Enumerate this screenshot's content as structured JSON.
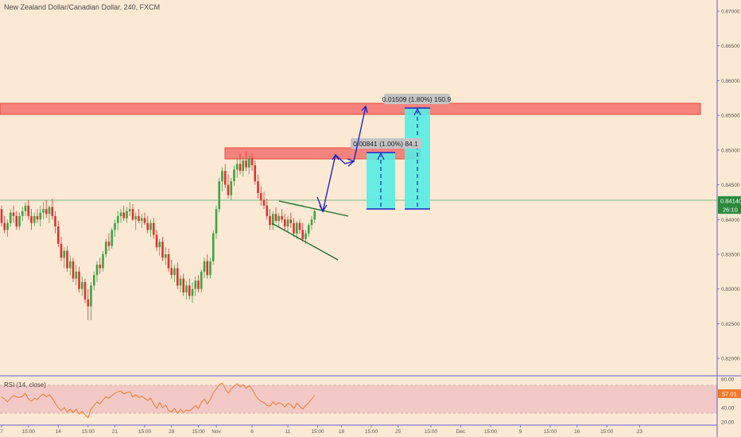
{
  "header": {
    "title": "New Zealand Dollar/Canadian Dollar, 240, FXCM"
  },
  "rsi_panel": {
    "label": "RSI (14, close)"
  },
  "price_axis": {
    "ticks": [
      "0.87000",
      "0.86500",
      "0.86000",
      "0.85500",
      "0.85000",
      "0.84500",
      "0.84000",
      "0.83500",
      "0.83000",
      "0.82500",
      "0.82000"
    ],
    "tick_values": [
      0.87,
      0.865,
      0.86,
      0.855,
      0.85,
      0.845,
      0.84,
      0.835,
      0.83,
      0.825,
      0.82
    ],
    "current_price": "0.84140",
    "countdown": "26:10"
  },
  "rsi_axis": {
    "ticks": [
      "80.00",
      "40.00",
      "20.00"
    ],
    "tick_values": [
      80,
      40,
      20
    ],
    "current": "57.01"
  },
  "time_axis": {
    "labels": [
      "7",
      "15:00",
      "14",
      "15:00",
      "21",
      "15:00",
      "28",
      "15:00",
      "Nov",
      "6",
      "11",
      "15:00",
      "18",
      "15:00",
      "25",
      "15:00",
      "Dec",
      "15:00",
      "9",
      "15:00",
      "16",
      "15:00",
      "23"
    ],
    "bars": [
      0,
      9,
      19,
      29,
      38,
      48,
      57,
      66,
      72,
      84,
      96,
      106,
      114,
      124,
      133,
      144,
      154,
      164,
      174,
      184,
      193,
      203,
      214
    ]
  },
  "annotations": {
    "measure_small": "0.00841 (1.00%) 84.1",
    "measure_large": "0.01509 (1.80%) 150.9"
  },
  "colors": {
    "background": "#fce9d4",
    "up_candle": "#3aa548",
    "down_candle": "#e0312f",
    "zone_fill": "#f4837c",
    "zone_border": "#e74c3c",
    "projection": "#1f22c8",
    "trendline": "#1f6b2a",
    "target_box": "#55ede4",
    "rsi_line": "#f2782c",
    "rsi_band": "#f0c6c6",
    "price_label": "#2b8a3e",
    "rsi_label_bg": "#f2782c",
    "axis_line": "#5f5fd0"
  },
  "chart_data": {
    "type": "candlestick",
    "symbol": "NZDCAD",
    "interval": "240",
    "source": "FXCM",
    "y_range": [
      0.8175,
      0.8716
    ],
    "rsi_range": [
      18,
      82
    ],
    "ohlc": [
      [
        0.8415,
        0.842,
        0.839,
        0.8395
      ],
      [
        0.8395,
        0.8405,
        0.838,
        0.8385
      ],
      [
        0.8385,
        0.84,
        0.8375,
        0.8395
      ],
      [
        0.8395,
        0.8415,
        0.839,
        0.841
      ],
      [
        0.841,
        0.842,
        0.8395,
        0.8405
      ],
      [
        0.8405,
        0.8412,
        0.8385,
        0.839
      ],
      [
        0.839,
        0.841,
        0.8385,
        0.8405
      ],
      [
        0.8405,
        0.8418,
        0.8398,
        0.8412
      ],
      [
        0.8412,
        0.8425,
        0.8405,
        0.842
      ],
      [
        0.842,
        0.8428,
        0.84,
        0.8405
      ],
      [
        0.8405,
        0.8415,
        0.8385,
        0.8395
      ],
      [
        0.8395,
        0.841,
        0.839,
        0.8405
      ],
      [
        0.8405,
        0.8415,
        0.8395,
        0.84
      ],
      [
        0.84,
        0.842,
        0.839,
        0.841
      ],
      [
        0.841,
        0.8425,
        0.84,
        0.8415
      ],
      [
        0.8415,
        0.8428,
        0.8402,
        0.8408
      ],
      [
        0.8408,
        0.842,
        0.8395,
        0.8418
      ],
      [
        0.8418,
        0.843,
        0.84,
        0.8405
      ],
      [
        0.8405,
        0.8412,
        0.838,
        0.839
      ],
      [
        0.839,
        0.8398,
        0.836,
        0.8365
      ],
      [
        0.8365,
        0.8375,
        0.834,
        0.8345
      ],
      [
        0.8345,
        0.836,
        0.833,
        0.8355
      ],
      [
        0.8355,
        0.8362,
        0.8325,
        0.833
      ],
      [
        0.833,
        0.8348,
        0.832,
        0.834
      ],
      [
        0.834,
        0.8345,
        0.831,
        0.8315
      ],
      [
        0.8315,
        0.8335,
        0.8305,
        0.8325
      ],
      [
        0.8325,
        0.8332,
        0.8295,
        0.83
      ],
      [
        0.83,
        0.8318,
        0.829,
        0.831
      ],
      [
        0.831,
        0.8315,
        0.828,
        0.8285
      ],
      [
        0.8285,
        0.83,
        0.8255,
        0.8275
      ],
      [
        0.8275,
        0.831,
        0.8255,
        0.8305
      ],
      [
        0.8305,
        0.8325,
        0.8298,
        0.832
      ],
      [
        0.832,
        0.834,
        0.831,
        0.8335
      ],
      [
        0.8335,
        0.8345,
        0.8322,
        0.833
      ],
      [
        0.833,
        0.8355,
        0.8325,
        0.835
      ],
      [
        0.835,
        0.8372,
        0.8345,
        0.8368
      ],
      [
        0.8368,
        0.838,
        0.8355,
        0.8362
      ],
      [
        0.8362,
        0.8388,
        0.8358,
        0.8385
      ],
      [
        0.8385,
        0.84,
        0.8375,
        0.8395
      ],
      [
        0.8395,
        0.8412,
        0.8385,
        0.8405
      ],
      [
        0.8405,
        0.8415,
        0.8395,
        0.841
      ],
      [
        0.841,
        0.842,
        0.8398,
        0.8402
      ],
      [
        0.8402,
        0.8418,
        0.8395,
        0.8412
      ],
      [
        0.8412,
        0.8425,
        0.8405,
        0.8415
      ],
      [
        0.8415,
        0.8422,
        0.8398,
        0.84
      ],
      [
        0.84,
        0.841,
        0.8385,
        0.8405
      ],
      [
        0.8405,
        0.8415,
        0.8395,
        0.8398
      ],
      [
        0.8398,
        0.8408,
        0.8388,
        0.8402
      ],
      [
        0.8402,
        0.841,
        0.8392,
        0.8395
      ],
      [
        0.8395,
        0.8405,
        0.838,
        0.8385
      ],
      [
        0.8385,
        0.84,
        0.8375,
        0.8395
      ],
      [
        0.8395,
        0.8402,
        0.8372,
        0.8378
      ],
      [
        0.8378,
        0.8385,
        0.8355,
        0.836
      ],
      [
        0.836,
        0.8372,
        0.8348,
        0.8368
      ],
      [
        0.8368,
        0.8375,
        0.834,
        0.8345
      ],
      [
        0.8345,
        0.836,
        0.8335,
        0.835
      ],
      [
        0.835,
        0.8358,
        0.8325,
        0.833
      ],
      [
        0.833,
        0.8342,
        0.8315,
        0.832
      ],
      [
        0.832,
        0.8335,
        0.831,
        0.833
      ],
      [
        0.833,
        0.8338,
        0.83,
        0.8305
      ],
      [
        0.8305,
        0.832,
        0.8295,
        0.8315
      ],
      [
        0.8315,
        0.8322,
        0.829,
        0.8295
      ],
      [
        0.8295,
        0.8312,
        0.8285,
        0.8305
      ],
      [
        0.8305,
        0.8315,
        0.8285,
        0.829
      ],
      [
        0.829,
        0.831,
        0.828,
        0.83
      ],
      [
        0.83,
        0.8318,
        0.829,
        0.8312
      ],
      [
        0.8312,
        0.832,
        0.8295,
        0.83
      ],
      [
        0.83,
        0.8328,
        0.8295,
        0.8325
      ],
      [
        0.8325,
        0.8345,
        0.8315,
        0.834
      ],
      [
        0.834,
        0.835,
        0.8315,
        0.832
      ],
      [
        0.832,
        0.8345,
        0.8315,
        0.834
      ],
      [
        0.834,
        0.8385,
        0.8335,
        0.838
      ],
      [
        0.838,
        0.842,
        0.8372,
        0.8415
      ],
      [
        0.8415,
        0.846,
        0.841,
        0.8455
      ],
      [
        0.8455,
        0.8475,
        0.844,
        0.847
      ],
      [
        0.847,
        0.848,
        0.8445,
        0.845
      ],
      [
        0.845,
        0.8465,
        0.843,
        0.8435
      ],
      [
        0.8435,
        0.846,
        0.8428,
        0.8455
      ],
      [
        0.8455,
        0.8478,
        0.8448,
        0.8472
      ],
      [
        0.8472,
        0.8488,
        0.846,
        0.848
      ],
      [
        0.848,
        0.8495,
        0.8465,
        0.847
      ],
      [
        0.847,
        0.849,
        0.8462,
        0.8485
      ],
      [
        0.8485,
        0.8498,
        0.847,
        0.8475
      ],
      [
        0.8475,
        0.8492,
        0.8465,
        0.8488
      ],
      [
        0.8488,
        0.8495,
        0.847,
        0.8478
      ],
      [
        0.8478,
        0.8485,
        0.845,
        0.8455
      ],
      [
        0.8455,
        0.8465,
        0.843,
        0.8438
      ],
      [
        0.8438,
        0.8448,
        0.842,
        0.8428
      ],
      [
        0.8428,
        0.844,
        0.8415,
        0.842
      ],
      [
        0.842,
        0.843,
        0.84,
        0.8405
      ],
      [
        0.8405,
        0.8415,
        0.8385,
        0.8392
      ],
      [
        0.8392,
        0.8412,
        0.8385,
        0.8408
      ],
      [
        0.8408,
        0.8418,
        0.8395,
        0.8398
      ],
      [
        0.8398,
        0.841,
        0.8388,
        0.8405
      ],
      [
        0.8405,
        0.8415,
        0.8395,
        0.84
      ],
      [
        0.84,
        0.8408,
        0.8385,
        0.839
      ],
      [
        0.839,
        0.8405,
        0.8382,
        0.84
      ],
      [
        0.84,
        0.841,
        0.8388,
        0.8395
      ],
      [
        0.8395,
        0.8402,
        0.8375,
        0.838
      ],
      [
        0.838,
        0.8398,
        0.8372,
        0.8395
      ],
      [
        0.8395,
        0.84,
        0.838,
        0.8385
      ],
      [
        0.8385,
        0.8395,
        0.8368,
        0.8372
      ],
      [
        0.8372,
        0.8385,
        0.8365,
        0.838
      ],
      [
        0.838,
        0.8395,
        0.8375,
        0.8392
      ],
      [
        0.8392,
        0.8405,
        0.8385,
        0.84
      ],
      [
        0.84,
        0.8415,
        0.8395,
        0.8412
      ]
    ],
    "rsi": [
      55,
      52,
      48,
      53,
      57,
      55,
      54,
      56,
      60,
      52,
      49,
      53,
      51,
      56,
      59,
      55,
      58,
      53,
      46,
      40,
      36,
      40,
      34,
      38,
      33,
      38,
      31,
      35,
      30,
      26,
      38,
      43,
      48,
      45,
      51,
      55,
      53,
      57,
      60,
      62,
      63,
      59,
      61,
      62,
      55,
      58,
      54,
      56,
      53,
      50,
      53,
      45,
      39,
      47,
      40,
      44,
      36,
      34,
      39,
      32,
      38,
      33,
      37,
      35,
      39,
      43,
      39,
      47,
      52,
      45,
      52,
      60,
      66,
      72,
      74,
      66,
      60,
      66,
      70,
      73,
      69,
      72,
      67,
      70,
      66,
      58,
      52,
      49,
      47,
      43,
      42,
      48,
      44,
      47,
      45,
      41,
      46,
      44,
      39,
      46,
      42,
      38,
      43,
      47,
      52,
      57
    ],
    "zones": [
      {
        "name": "upper resistance",
        "low": 0.8542,
        "high": 0.8557
      },
      {
        "name": "lower resistance",
        "low": 0.8478,
        "high": 0.8492
      }
    ],
    "measurements": [
      {
        "label": "0.00841 (1.00%) 84.1",
        "from": 0.8402,
        "to": 0.8486
      },
      {
        "label": "0.01509 (1.80%) 150.9",
        "from": 0.8402,
        "to": 0.8553
      }
    ],
    "current_price": 0.8414,
    "rsi_current": 57.01
  }
}
